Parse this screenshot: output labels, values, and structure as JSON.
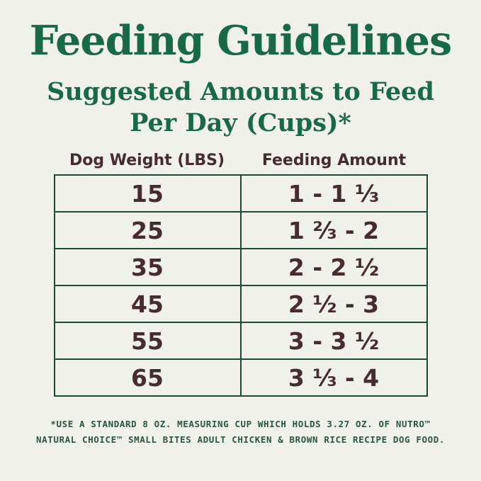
{
  "chart_data": {
    "type": "table",
    "title": "Feeding Guidelines",
    "subtitle_line1": "Suggested Amounts to Feed",
    "subtitle_line2": "Per Day (Cups)*",
    "columns": [
      "Dog Weight (LBS)",
      "Feeding Amount"
    ],
    "rows": [
      [
        "15",
        "1 - 1 ⅓"
      ],
      [
        "25",
        "1 ⅔ - 2"
      ],
      [
        "35",
        "2 - 2 ½"
      ],
      [
        "45",
        "2 ½ - 3"
      ],
      [
        "55",
        "3 - 3 ½"
      ],
      [
        "65",
        "3 ⅓ - 4"
      ]
    ],
    "weights_lbs": [
      15,
      25,
      35,
      45,
      55,
      65
    ],
    "amount_ranges_cups": [
      [
        1,
        1.33
      ],
      [
        1.67,
        2
      ],
      [
        2,
        2.5
      ],
      [
        2.5,
        3
      ],
      [
        3,
        3.5
      ],
      [
        3.33,
        4
      ]
    ],
    "footnote_line1": "*USE A STANDARD 8 OZ. MEASURING CUP WHICH HOLDS 3.27 OZ. OF NUTRO™",
    "footnote_line2": "NATURAL CHOICE™ SMALL BITES ADULT CHICKEN & BROWN RICE RECIPE DOG FOOD."
  },
  "colors": {
    "background": "#f0f1e8",
    "heading_green": "#186945",
    "border_green": "#1d4936",
    "cell_brown": "#472a32",
    "footnote_green": "#2a5641"
  }
}
